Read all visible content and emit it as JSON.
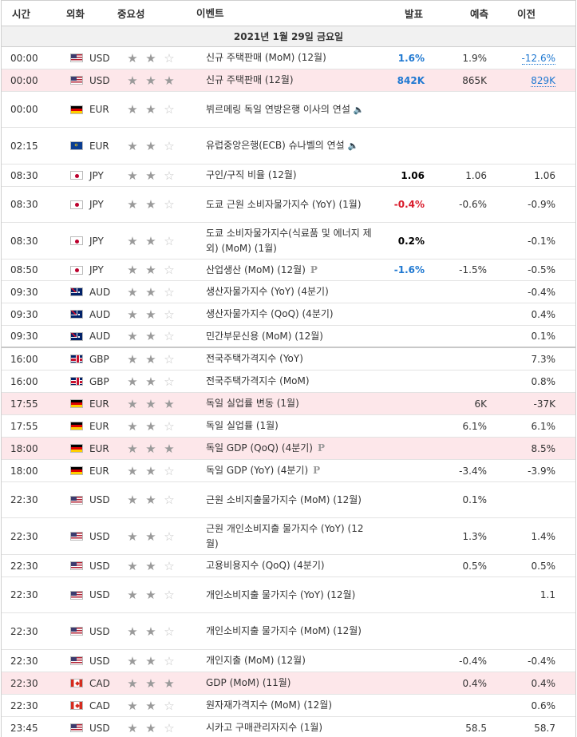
{
  "header": {
    "time": "시간",
    "currency": "외화",
    "importance": "중요성",
    "event": "이벤트",
    "actual": "발표",
    "forecast": "예측",
    "previous": "이전"
  },
  "date": "2021년 1월 29일 금요일",
  "colors": {
    "highlight": "#fde7ea",
    "blue": "#1f78d1",
    "red": "#d91a2a"
  },
  "rows": [
    {
      "time": "00:00",
      "flag": "us-flag-icon",
      "cur": "USD",
      "imp": 2,
      "event": "신규 주택판매 (MoM) (12월)",
      "actual": "1.6%",
      "actual_color": "blue",
      "forecast": "1.9%",
      "previous": "-12.6%",
      "prev_link": true,
      "h": 28
    },
    {
      "time": "00:00",
      "flag": "us-flag-icon",
      "cur": "USD",
      "imp": 3,
      "event": "신규 주택판매 (12월)",
      "actual": "842K",
      "actual_color": "blue",
      "forecast": "865K",
      "previous": "829K",
      "prev_link": true,
      "hl": true,
      "h": 28
    },
    {
      "time": "00:00",
      "flag": "de-flag-icon",
      "cur": "EUR",
      "imp": 2,
      "event": "뷔르메링 독일 연방은행 이사의 연설",
      "speech": true,
      "actual": "",
      "forecast": "",
      "previous": "",
      "h": 45
    },
    {
      "time": "02:15",
      "flag": "eu-flag-icon",
      "cur": "EUR",
      "imp": 2,
      "event": "유럽중앙은행(ECB) 슈나벨의 연설",
      "speech": true,
      "actual": "",
      "forecast": "",
      "previous": "",
      "h": 46
    },
    {
      "time": "08:30",
      "flag": "jp-flag-icon",
      "cur": "JPY",
      "imp": 2,
      "event": "구인/구직 비율 (12월)",
      "actual": "1.06",
      "actual_color": "black",
      "forecast": "1.06",
      "previous": "1.06",
      "h": 28
    },
    {
      "time": "08:30",
      "flag": "jp-flag-icon",
      "cur": "JPY",
      "imp": 2,
      "event": "도쿄 근원 소비자물가지수 (YoY) (1월)",
      "actual": "-0.4%",
      "actual_color": "red",
      "forecast": "-0.6%",
      "previous": "-0.9%",
      "h": 45
    },
    {
      "time": "08:30",
      "flag": "jp-flag-icon",
      "cur": "JPY",
      "imp": 2,
      "event": "도쿄 소비자물가지수(식료품 및 에너지 제외) (MoM) (1월)",
      "actual": "0.2%",
      "actual_color": "black",
      "forecast": "",
      "previous": "-0.1%",
      "h": 46
    },
    {
      "time": "08:50",
      "flag": "jp-flag-icon",
      "cur": "JPY",
      "imp": 2,
      "event": "산업생산 (MoM) (12월)",
      "prelim": "P",
      "actual": "-1.6%",
      "actual_color": "blue",
      "forecast": "-1.5%",
      "previous": "-0.5%",
      "h": 27
    },
    {
      "time": "09:30",
      "flag": "au-flag-icon",
      "cur": "AUD",
      "imp": 2,
      "event": "생산자물가지수 (YoY) (4분기)",
      "actual": "",
      "forecast": "",
      "previous": "-0.4%",
      "h": 28
    },
    {
      "time": "09:30",
      "flag": "au-flag-icon",
      "cur": "AUD",
      "imp": 2,
      "event": "생산자물가지수 (QoQ) (4분기)",
      "actual": "",
      "forecast": "",
      "previous": "0.4%",
      "h": 28
    },
    {
      "time": "09:30",
      "flag": "au-flag-icon",
      "cur": "AUD",
      "imp": 2,
      "event": "민간부문신용 (MoM) (12월)",
      "actual": "",
      "forecast": "",
      "previous": "0.1%",
      "h": 28,
      "sep": true
    },
    {
      "time": "16:00",
      "flag": "gb-flag-icon",
      "cur": "GBP",
      "imp": 2,
      "event": "전국주택가격지수 (YoY)",
      "actual": "",
      "forecast": "",
      "previous": "7.3%",
      "h": 28
    },
    {
      "time": "16:00",
      "flag": "gb-flag-icon",
      "cur": "GBP",
      "imp": 2,
      "event": "전국주택가격지수 (MoM)",
      "actual": "",
      "forecast": "",
      "previous": "0.8%",
      "h": 28
    },
    {
      "time": "17:55",
      "flag": "de-flag-icon",
      "cur": "EUR",
      "imp": 3,
      "event": "독일 실업률 변동 (1월)",
      "actual": "",
      "forecast": "6K",
      "previous": "-37K",
      "hl": true,
      "h": 28
    },
    {
      "time": "17:55",
      "flag": "de-flag-icon",
      "cur": "EUR",
      "imp": 2,
      "event": "독일 실업률 (1월)",
      "actual": "",
      "forecast": "6.1%",
      "previous": "6.1%",
      "h": 28
    },
    {
      "time": "18:00",
      "flag": "de-flag-icon",
      "cur": "EUR",
      "imp": 3,
      "event": "독일 GDP (QoQ) (4분기)",
      "prelim": "P",
      "actual": "",
      "forecast": "",
      "previous": "8.5%",
      "hl": true,
      "h": 28
    },
    {
      "time": "18:00",
      "flag": "de-flag-icon",
      "cur": "EUR",
      "imp": 2,
      "event": "독일 GDP (YoY) (4분기)",
      "prelim": "P",
      "actual": "",
      "forecast": "-3.4%",
      "previous": "-3.9%",
      "h": 28
    },
    {
      "time": "22:30",
      "flag": "us-flag-icon",
      "cur": "USD",
      "imp": 2,
      "event": "근원 소비지출물가지수 (MoM) (12월)",
      "actual": "",
      "forecast": "0.1%",
      "previous": "",
      "h": 45
    },
    {
      "time": "22:30",
      "flag": "us-flag-icon",
      "cur": "USD",
      "imp": 2,
      "event": "근원 개인소비지출 물가지수 (YoY) (12월)",
      "actual": "",
      "forecast": "1.3%",
      "previous": "1.4%",
      "h": 46
    },
    {
      "time": "22:30",
      "flag": "us-flag-icon",
      "cur": "USD",
      "imp": 2,
      "event": "고용비용지수 (QoQ) (4분기)",
      "actual": "",
      "forecast": "0.5%",
      "previous": "0.5%",
      "h": 28
    },
    {
      "time": "22:30",
      "flag": "us-flag-icon",
      "cur": "USD",
      "imp": 2,
      "event": "개인소비지출 물가지수 (YoY) (12월)",
      "actual": "",
      "forecast": "",
      "previous": "1.1",
      "h": 45
    },
    {
      "time": "22:30",
      "flag": "us-flag-icon",
      "cur": "USD",
      "imp": 2,
      "event": "개인소비지출 물가지수 (MoM) (12월)",
      "actual": "",
      "forecast": "",
      "previous": "",
      "h": 46
    },
    {
      "time": "22:30",
      "flag": "us-flag-icon",
      "cur": "USD",
      "imp": 2,
      "event": "개인지출 (MoM) (12월)",
      "actual": "",
      "forecast": "-0.4%",
      "previous": "-0.4%",
      "h": 28
    },
    {
      "time": "22:30",
      "flag": "ca-flag-icon",
      "cur": "CAD",
      "imp": 3,
      "event": "GDP (MoM) (11월)",
      "actual": "",
      "forecast": "0.4%",
      "previous": "0.4%",
      "hl": true,
      "h": 28
    },
    {
      "time": "22:30",
      "flag": "ca-flag-icon",
      "cur": "CAD",
      "imp": 2,
      "event": "원자재가격지수 (MoM) (12월)",
      "actual": "",
      "forecast": "",
      "previous": "0.6%",
      "h": 28
    },
    {
      "time": "23:45",
      "flag": "us-flag-icon",
      "cur": "USD",
      "imp": 2,
      "event": "시카고 구매관리자지수 (1월)",
      "actual": "",
      "forecast": "58.5",
      "previous": "58.7",
      "h": 28
    }
  ]
}
